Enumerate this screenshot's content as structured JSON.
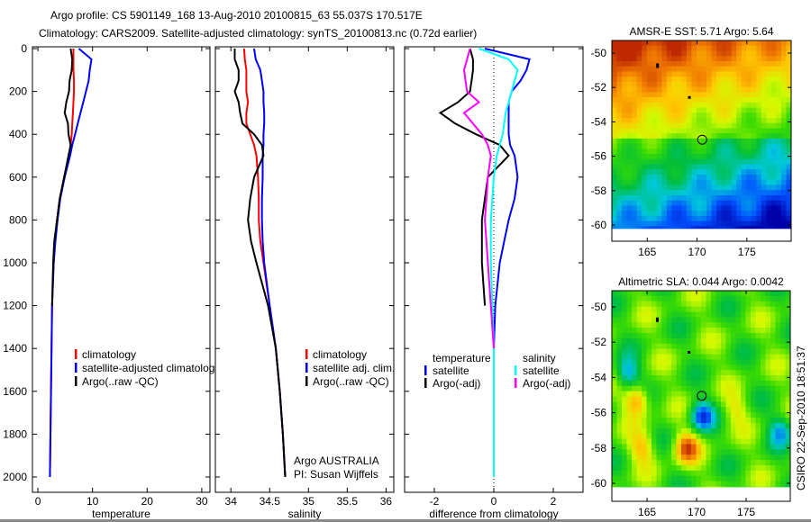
{
  "header": {
    "line1": "Argo profile: CS 5901149_168 13-Aug-2010 20100815_63 55.037S 170.517E",
    "line2": "Climatology: CARS2009. Satellite-adjusted climatology: synTS_20100813.nc (0.72d earlier)"
  },
  "colors": {
    "red": "#ff0000",
    "blue": "#0000ff",
    "black": "#000000",
    "cyan": "#00ffff",
    "magenta": "#ff00ff"
  },
  "annotation": {
    "line1": "Argo AUSTRALIA",
    "line2": "PI: Susan Wijffels"
  },
  "stamp": "CSIRO 22-Sep-2010 18:51:37",
  "chart_data": [
    {
      "type": "line",
      "id": "temperature",
      "xlabel": "temperature",
      "ylabel": "",
      "xlim": [
        -1,
        31.5
      ],
      "ylim": [
        2030,
        0
      ],
      "xticks": [
        "0",
        "10",
        "20",
        "30"
      ],
      "xtick_values": [
        0,
        10,
        20,
        30
      ],
      "yticks": [
        "0",
        "200",
        "400",
        "600",
        "800",
        "1000",
        "1200",
        "1400",
        "1600",
        "1800",
        "2000"
      ],
      "ytick_values": [
        0,
        200,
        400,
        600,
        800,
        1000,
        1200,
        1400,
        1600,
        1800,
        2000
      ],
      "depth": [
        0,
        50,
        100,
        150,
        200,
        250,
        300,
        350,
        400,
        450,
        500,
        600,
        700,
        800,
        900,
        1000,
        1200,
        1400,
        1600,
        1800,
        2000
      ],
      "legend": [
        "climatology",
        "satellite-adjusted climatology",
        "Argo(..raw -QC)"
      ],
      "series": [
        {
          "name": "climatology",
          "color": "#ff0000",
          "values": [
            6.5,
            6.5,
            6.5,
            6.6,
            6.6,
            6.5,
            6.4,
            6.3,
            6.2,
            6.0,
            5.8,
            4.8,
            4.0,
            3.5,
            3.1,
            2.9,
            2.6,
            2.5,
            2.4,
            2.3,
            2.2
          ]
        },
        {
          "name": "satellite-adjusted climatology",
          "color": "#0000ff",
          "values": [
            7.5,
            9.8,
            9.5,
            9.3,
            8.8,
            8.3,
            7.8,
            7.3,
            6.8,
            6.3,
            5.9,
            4.9,
            4.1,
            3.6,
            3.2,
            2.9,
            2.6,
            2.5,
            2.4,
            2.3,
            2.2
          ]
        },
        {
          "name": "Argo(..raw -QC)",
          "color": "#000000",
          "values": [
            6.0,
            6.3,
            6.2,
            5.8,
            5.7,
            5.2,
            4.9,
            5.5,
            5.6,
            6.0,
            5.6,
            4.8,
            4.0,
            3.5,
            3.0,
            2.8,
            2.6,
            null,
            null,
            null,
            null
          ]
        }
      ]
    },
    {
      "type": "line",
      "id": "salinity",
      "xlabel": "salinity",
      "xlim": [
        33.8,
        36.1
      ],
      "ylim": [
        2030,
        0
      ],
      "xticks": [
        "34",
        "34.5",
        "35",
        "35.5",
        "36"
      ],
      "xtick_values": [
        34,
        34.5,
        35,
        35.5,
        36
      ],
      "depth": [
        0,
        50,
        100,
        150,
        200,
        250,
        300,
        350,
        400,
        450,
        500,
        600,
        700,
        800,
        900,
        1000,
        1200,
        1400,
        1600,
        1800,
        2000
      ],
      "legend": [
        "climatology",
        "satellite adj. clim.",
        "Argo(..raw -QC)"
      ],
      "series": [
        {
          "name": "climatology",
          "color": "#ff0000",
          "values": [
            34.17,
            34.18,
            34.2,
            34.2,
            34.2,
            34.22,
            34.2,
            34.2,
            34.25,
            34.3,
            34.33,
            34.35,
            34.36,
            34.36,
            34.38,
            34.42,
            34.5,
            34.58,
            34.63,
            34.67,
            34.7
          ]
        },
        {
          "name": "satellite adj. clim.",
          "color": "#0000ff",
          "values": [
            34.3,
            34.32,
            34.38,
            34.4,
            34.42,
            34.42,
            34.43,
            34.43,
            34.42,
            34.42,
            34.41,
            34.41,
            34.4,
            34.4,
            34.41,
            34.43,
            34.5,
            34.58,
            34.63,
            34.67,
            34.7
          ]
        },
        {
          "name": "Argo(..raw -QC)",
          "color": "#000000",
          "values": [
            34.05,
            34.05,
            34.1,
            34.1,
            34.05,
            34.1,
            34.12,
            34.15,
            34.3,
            34.4,
            34.42,
            34.3,
            34.25,
            34.22,
            34.26,
            34.33,
            34.48,
            34.58,
            34.63,
            34.67,
            34.7
          ]
        }
      ]
    },
    {
      "type": "line",
      "id": "difference",
      "xlabel": "difference from climatology",
      "xlim": [
        -3,
        3
      ],
      "ylim": [
        2030,
        0
      ],
      "xticks": [
        "-2",
        "0",
        "2"
      ],
      "xtick_values": [
        -2,
        0,
        2
      ],
      "depth": [
        0,
        50,
        100,
        150,
        200,
        250,
        300,
        350,
        400,
        450,
        500,
        600,
        700,
        800,
        900,
        1000,
        1200,
        1400,
        1600,
        1800,
        2000
      ],
      "legend_headers": [
        "temperature",
        "salinity"
      ],
      "legend": [
        "satellite",
        "Argo(-adj)",
        "satellite",
        "Argo(-adj)"
      ],
      "series": [
        {
          "name": "temperature satellite",
          "color": "#0000ff",
          "values": [
            -0.3,
            1.2,
            1.1,
            0.9,
            0.6,
            0.5,
            0.5,
            0.5,
            0.5,
            0.55,
            0.7,
            0.8,
            0.7,
            0.5,
            0.35,
            0.2,
            0.05,
            0,
            0,
            0,
            0
          ]
        },
        {
          "name": "temperature Argo(-adj)",
          "color": "#000000",
          "values": [
            -0.8,
            -0.7,
            -0.7,
            -0.75,
            -0.8,
            -1.2,
            -1.8,
            -1.3,
            -0.6,
            0.2,
            0.5,
            -0.2,
            -0.3,
            -0.4,
            -0.4,
            -0.4,
            -0.3,
            null,
            null,
            null,
            null
          ]
        },
        {
          "name": "salinity satellite",
          "color": "#00ffff",
          "values": [
            -0.5,
            0.5,
            0.8,
            0.7,
            0.6,
            0.5,
            0.4,
            0.35,
            0.3,
            0.2,
            0.1,
            0,
            -0.05,
            -0.1,
            -0.1,
            -0.1,
            -0.05,
            0,
            0,
            0,
            0
          ]
        },
        {
          "name": "salinity Argo(-adj)",
          "color": "#ff00ff",
          "values": [
            -0.8,
            -0.9,
            -1.0,
            -0.95,
            -0.9,
            -0.5,
            -1.0,
            -0.7,
            -0.4,
            -0.2,
            -0.1,
            -0.2,
            -0.25,
            -0.3,
            -0.25,
            -0.2,
            -0.1,
            0,
            null,
            null,
            null
          ]
        }
      ]
    },
    {
      "type": "heatmap",
      "id": "sst-map",
      "title": "AMSR-E SST: 5.71 Argo: 5.64",
      "xlim": [
        161.45,
        179.45
      ],
      "ylim": [
        -60.9,
        -49.27
      ],
      "xticks": [
        "165",
        "170",
        "175"
      ],
      "xtick_values": [
        165,
        170,
        175
      ],
      "yticks": [
        "-50",
        "-52",
        "-54",
        "-56",
        "-58",
        "-60"
      ],
      "ytick_values": [
        -50,
        -52,
        -54,
        -56,
        -58,
        -60
      ],
      "argo_position": [
        170.517,
        -55.037
      ]
    },
    {
      "type": "heatmap",
      "id": "sla-map",
      "title": "Altimetric SLA: 0.044 Argo: 0.0042",
      "xlim": [
        161.45,
        179.45
      ],
      "ylim": [
        -61.0,
        -49.08
      ],
      "xticks": [
        "165",
        "170",
        "175"
      ],
      "xtick_values": [
        165,
        170,
        175
      ],
      "yticks": [
        "-50",
        "-52",
        "-54",
        "-56",
        "-58",
        "-60"
      ],
      "ytick_values": [
        -50,
        -52,
        -54,
        -56,
        -58,
        -60
      ],
      "argo_position": [
        170.517,
        -55.037
      ]
    }
  ]
}
